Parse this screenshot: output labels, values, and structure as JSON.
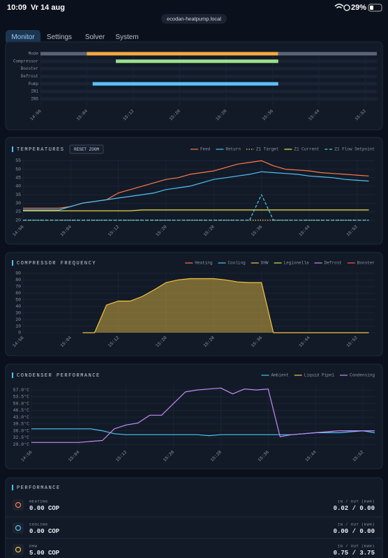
{
  "status_bar": {
    "time": "10:09",
    "date": "Vr 14 aug",
    "battery": "29%"
  },
  "url": "ecodan-heatpump.local",
  "tabs": [
    "Monitor",
    "Settings",
    "Solver",
    "System"
  ],
  "chart_data": [
    {
      "type": "timeline",
      "rows": [
        {
          "name": "Mode",
          "segments": [
            {
              "start": "14:56",
              "end": "15:04",
              "color": "#5a6478"
            },
            {
              "start": "15:04",
              "end": "15:37",
              "color": "#f5a942"
            },
            {
              "start": "15:37",
              "end": "15:54",
              "color": "#5a6478"
            }
          ]
        },
        {
          "name": "Compressor",
          "segments": [
            {
              "start": "15:09",
              "end": "15:37",
              "color": "#9be08a"
            }
          ]
        },
        {
          "name": "Booster",
          "segments": []
        },
        {
          "name": "Defrost",
          "segments": []
        },
        {
          "name": "Pump",
          "segments": [
            {
              "start": "15:05",
              "end": "15:37",
              "color": "#5bc0f8"
            }
          ]
        },
        {
          "name": "IN1",
          "segments": []
        },
        {
          "name": "IN6",
          "segments": []
        }
      ],
      "xlim": [
        "14:56",
        "15:54"
      ],
      "xticks": [
        "14:56",
        "15:04",
        "15:12",
        "15:20",
        "15:28",
        "15:36",
        "15:44",
        "15:52"
      ],
      "grid": true
    },
    {
      "type": "line",
      "title": "TEMPERATURES",
      "button": "RESET ZOOM",
      "legend": "top-right",
      "grid": true,
      "x": [
        "14:56",
        "14:58",
        "15:00",
        "15:02",
        "15:04",
        "15:06",
        "15:08",
        "15:10",
        "15:12",
        "15:14",
        "15:16",
        "15:18",
        "15:20",
        "15:22",
        "15:24",
        "15:26",
        "15:28",
        "15:30",
        "15:32",
        "15:34",
        "15:36",
        "15:38",
        "15:40",
        "15:42",
        "15:44",
        "15:46",
        "15:48",
        "15:50",
        "15:52",
        "15:54"
      ],
      "xlim": [
        "14:56",
        "15:55"
      ],
      "xticks": [
        "14:56",
        "15:04",
        "15:12",
        "15:20",
        "15:28",
        "15:36",
        "15:44",
        "15:52"
      ],
      "ylim": [
        19,
        56
      ],
      "yticks": [
        20,
        25,
        30,
        35,
        40,
        45,
        50,
        55
      ],
      "series": [
        {
          "name": "Feed",
          "color": "#ff7a45",
          "style": "solid",
          "values": [
            27,
            27,
            27,
            27,
            28,
            30,
            31,
            32,
            36,
            38,
            40,
            42,
            44,
            45,
            47,
            48,
            49,
            51,
            53,
            54,
            55,
            52,
            50,
            49.5,
            49,
            48,
            47.5,
            47,
            46.5,
            46
          ]
        },
        {
          "name": "Return",
          "color": "#4fc3f7",
          "style": "solid",
          "values": [
            26,
            26,
            26,
            26,
            28,
            30,
            31,
            32,
            33,
            34,
            35,
            36,
            38,
            39,
            40,
            42,
            44,
            45,
            46,
            47,
            48.5,
            48,
            47.5,
            47,
            46,
            45.5,
            45,
            44,
            43.5,
            43
          ]
        },
        {
          "name": "Z1 Target",
          "color": "#e8e070",
          "style": "dotted",
          "values": [
            20,
            20,
            20,
            20,
            20,
            20,
            20,
            20,
            20,
            20,
            20,
            20,
            20,
            20,
            20,
            20,
            20,
            20,
            20,
            20,
            20,
            20,
            20,
            20,
            20,
            20,
            20,
            20,
            20,
            20
          ]
        },
        {
          "name": "Z1 Current",
          "color": "#f5e642",
          "style": "solid",
          "values": [
            25.5,
            25.5,
            25.5,
            25.5,
            25.5,
            25.5,
            25.5,
            25.5,
            25.5,
            25.5,
            26,
            26,
            26,
            26,
            26,
            26,
            26,
            26,
            26,
            26,
            26,
            26,
            26,
            26,
            26,
            26,
            26,
            26,
            26,
            26
          ]
        },
        {
          "name": "Z1 Flow Setpoint",
          "color": "#4dd0e1",
          "style": "dashed",
          "values": [
            20,
            20,
            20,
            20,
            20,
            20,
            20,
            20,
            20,
            20,
            20,
            20,
            20,
            20,
            20,
            20,
            20,
            20,
            20,
            20,
            35,
            20,
            20,
            20,
            20,
            20,
            20,
            20,
            20,
            20
          ]
        }
      ]
    },
    {
      "type": "line",
      "title": "COMPRESSOR FREQUENCY",
      "legend": "top-right",
      "grid": true,
      "fill": true,
      "x": [
        "14:56",
        "14:58",
        "15:00",
        "15:02",
        "15:04",
        "15:06",
        "15:08",
        "15:10",
        "15:12",
        "15:14",
        "15:16",
        "15:18",
        "15:20",
        "15:22",
        "15:24",
        "15:26",
        "15:28",
        "15:30",
        "15:32",
        "15:34",
        "15:36",
        "15:38",
        "15:40",
        "15:42",
        "15:44",
        "15:46",
        "15:48",
        "15:50",
        "15:52",
        "15:54"
      ],
      "xlim": [
        "14:56",
        "15:55"
      ],
      "xticks": [
        "14:56",
        "15:04",
        "15:12",
        "15:20",
        "15:28",
        "15:36",
        "15:44",
        "15:52"
      ],
      "ylim": [
        0,
        92
      ],
      "yticks": [
        0,
        10,
        20,
        30,
        40,
        50,
        60,
        70,
        80,
        90
      ],
      "series": [
        {
          "name": "Heating",
          "color": "#ff7a45",
          "style": "solid",
          "values": [
            null,
            null,
            null,
            null,
            null,
            null,
            null,
            null,
            null,
            null,
            null,
            null,
            null,
            null,
            null,
            null,
            null,
            null,
            null,
            null,
            null,
            null,
            null,
            null,
            null,
            null,
            null,
            null,
            null,
            null
          ]
        },
        {
          "name": "Cooling",
          "color": "#4fc3f7",
          "style": "solid",
          "values": [
            null,
            null,
            null,
            null,
            null,
            null,
            null,
            null,
            null,
            null,
            null,
            null,
            null,
            null,
            null,
            null,
            null,
            null,
            null,
            null,
            null,
            null,
            null,
            null,
            null,
            null,
            null,
            null,
            null,
            null
          ]
        },
        {
          "name": "DHW",
          "color": "#f5c542",
          "style": "solid",
          "values": [
            null,
            null,
            null,
            null,
            null,
            0,
            0,
            42,
            48,
            48,
            55,
            65,
            76,
            80,
            82,
            82,
            82,
            80,
            77,
            76,
            76,
            0,
            0,
            0,
            0,
            0,
            0,
            0,
            0,
            0
          ]
        },
        {
          "name": "Legionella",
          "color": "#c6e84a",
          "style": "solid",
          "values": [
            null,
            null,
            null,
            null,
            null,
            null,
            null,
            null,
            null,
            null,
            null,
            null,
            null,
            null,
            null,
            null,
            null,
            null,
            null,
            null,
            null,
            null,
            null,
            null,
            null,
            null,
            null,
            null,
            null,
            null
          ]
        },
        {
          "name": "Defrost",
          "color": "#c48cf0",
          "style": "solid",
          "values": [
            null,
            null,
            null,
            null,
            null,
            null,
            null,
            null,
            null,
            null,
            null,
            null,
            null,
            null,
            null,
            null,
            null,
            null,
            null,
            null,
            null,
            null,
            null,
            null,
            null,
            null,
            null,
            null,
            null,
            null
          ]
        },
        {
          "name": "Booster",
          "color": "#ff5252",
          "style": "solid",
          "values": [
            null,
            null,
            null,
            null,
            null,
            null,
            null,
            null,
            null,
            null,
            null,
            null,
            null,
            null,
            null,
            null,
            null,
            null,
            null,
            null,
            null,
            null,
            null,
            null,
            null,
            null,
            null,
            null,
            null,
            null
          ]
        }
      ]
    },
    {
      "type": "line",
      "title": "CONDENSER PERFORMANCE",
      "legend": "top-right",
      "grid": true,
      "x": [
        "14:56",
        "14:58",
        "15:00",
        "15:02",
        "15:04",
        "15:06",
        "15:08",
        "15:10",
        "15:12",
        "15:14",
        "15:16",
        "15:18",
        "15:20",
        "15:22",
        "15:24",
        "15:26",
        "15:28",
        "15:30",
        "15:32",
        "15:34",
        "15:36",
        "15:38",
        "15:40",
        "15:42",
        "15:44",
        "15:46",
        "15:48",
        "15:50",
        "15:52",
        "15:54"
      ],
      "xlim": [
        "14:56",
        "15:54"
      ],
      "xticks": [
        "14:56",
        "15:04",
        "15:12",
        "15:20",
        "15:28",
        "15:36",
        "15:44",
        "15:52"
      ],
      "ylim": [
        27.6,
        59.2
      ],
      "yticks": [
        {
          "value": 29,
          "label": "29.0°C"
        },
        {
          "value": 32.5,
          "label": "32.5°C"
        },
        {
          "value": 36,
          "label": "36.0°C"
        },
        {
          "value": 39.5,
          "label": "39.5°C"
        },
        {
          "value": 43,
          "label": "43.0°C"
        },
        {
          "value": 46.5,
          "label": "46.5°C"
        },
        {
          "value": 50,
          "label": "50.0°C"
        },
        {
          "value": 53.5,
          "label": "53.5°C"
        },
        {
          "value": 57,
          "label": "57.0°C"
        }
      ],
      "series": [
        {
          "name": "Ambient",
          "color": "#4fc3f7",
          "style": "solid",
          "values": [
            37,
            37,
            37,
            37,
            37,
            37,
            36,
            34.5,
            34,
            34,
            34,
            34,
            34,
            34,
            34,
            33.5,
            34,
            34,
            34,
            34,
            34,
            34,
            34,
            34.5,
            35,
            35,
            35,
            35.5,
            36,
            35
          ]
        },
        {
          "name": "Liquid Pipe1",
          "color": "#f5c542",
          "style": "solid",
          "values": [
            null,
            null,
            null,
            null,
            null,
            null,
            null,
            null,
            null,
            null,
            null,
            null,
            null,
            null,
            null,
            null,
            null,
            null,
            null,
            null,
            null,
            null,
            null,
            null,
            null,
            null,
            null,
            null,
            null,
            null
          ]
        },
        {
          "name": "Condensing",
          "color": "#c48cf0",
          "style": "solid",
          "values": [
            30,
            30,
            30,
            30,
            30,
            30.5,
            31,
            37,
            39,
            40,
            44,
            44,
            50,
            56,
            57,
            57.5,
            58,
            55,
            57.5,
            57,
            57.5,
            33,
            34,
            34.5,
            35,
            35.5,
            36,
            36,
            36,
            36
          ]
        }
      ]
    }
  ],
  "performance": {
    "title": "PERFORMANCE",
    "rows": [
      {
        "label": "HEATING",
        "cop": "0.00 COP",
        "io_label": "IN / OUT (KWH)",
        "io": "0.02 / 0.00",
        "icon_color": "#ff7a45"
      },
      {
        "label": "COOLING",
        "cop": "0.00 COP",
        "io_label": "IN / OUT (KWH)",
        "io": "0.00 / 0.00",
        "icon_color": "#4fc3f7"
      },
      {
        "label": "DHW",
        "cop": "5.00 COP",
        "io_label": "IN / OUT (KWH)",
        "io": "0.75 / 3.75",
        "icon_color": "#f5c542"
      }
    ]
  }
}
